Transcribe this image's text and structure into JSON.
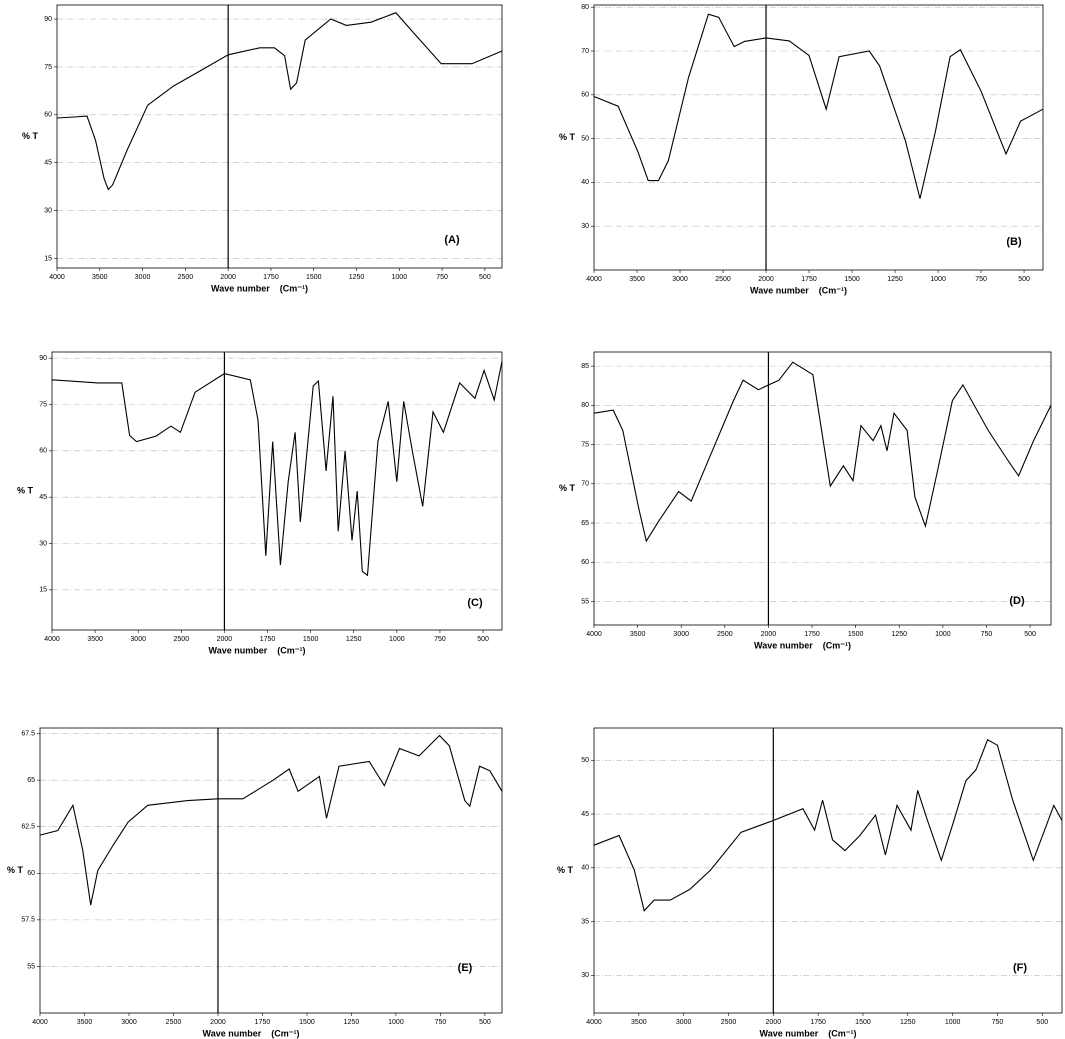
{
  "chart_data": [
    {
      "type": "line",
      "label": "(A)",
      "xlabel": "Wave number    (Cm⁻¹)",
      "ylabel": "% T",
      "color": "#000000",
      "grid": true,
      "xscale": "tick-uniform",
      "break_line": true,
      "xlim": [
        4000,
        400
      ],
      "ylim": [
        12,
        94.4
      ],
      "xticks": [
        4000,
        3500,
        3000,
        2500,
        2000,
        1750,
        1500,
        1250,
        1000,
        750,
        500
      ],
      "yticks": [
        15,
        30,
        45,
        60,
        75,
        90
      ],
      "x": [
        4000,
        3800,
        3650,
        3550,
        3450,
        3400,
        3350,
        3180,
        2940,
        2640,
        2350,
        2000,
        1815,
        1730,
        1670,
        1635,
        1600,
        1550,
        1400,
        1310,
        1165,
        1020,
        930,
        755,
        575,
        400
      ],
      "values": [
        59,
        59.3,
        59.6,
        52,
        40,
        36.6,
        38,
        49,
        63,
        69,
        73.4,
        78.8,
        81,
        81,
        78.5,
        68,
        70,
        83.4,
        90,
        88,
        89,
        92,
        86.5,
        76,
        76,
        80
      ]
    },
    {
      "type": "line",
      "label": "(B)",
      "xlabel": "Wave number    (Cm⁻¹)",
      "ylabel": "% T",
      "color": "#000000",
      "grid": true,
      "xscale": "tick-uniform",
      "break_line": true,
      "xlim": [
        4000,
        390
      ],
      "ylim": [
        20,
        80.5
      ],
      "xticks": [
        4000,
        3500,
        3000,
        2500,
        2000,
        1750,
        1500,
        1250,
        1000,
        750,
        500
      ],
      "yticks": [
        30,
        40,
        50,
        60,
        70,
        80
      ],
      "x": [
        4000,
        3720,
        3490,
        3370,
        3250,
        3135,
        2900,
        2670,
        2550,
        2370,
        2250,
        2000,
        1865,
        1750,
        1650,
        1575,
        1400,
        1340,
        1190,
        1105,
        1015,
        930,
        870,
        750,
        605,
        520,
        390
      ],
      "values": [
        59.6,
        57.4,
        47,
        40.4,
        40.4,
        45,
        64,
        78.4,
        77.7,
        71,
        72.2,
        73,
        72.3,
        69,
        56.7,
        68.7,
        70,
        66.6,
        49.5,
        36.3,
        51.7,
        68.7,
        70.3,
        60.8,
        46.5,
        54,
        56.7
      ]
    },
    {
      "type": "line",
      "label": "(C)",
      "xlabel": "Wave number    (Cm⁻¹)",
      "ylabel": "% T",
      "color": "#000000",
      "grid": true,
      "xscale": "tick-uniform",
      "break_line": true,
      "xlim": [
        4000,
        390
      ],
      "ylim": [
        2,
        92
      ],
      "xticks": [
        4000,
        3500,
        3000,
        2500,
        2000,
        1750,
        1500,
        1250,
        1000,
        750,
        500
      ],
      "yticks": [
        15,
        30,
        45,
        60,
        75,
        90
      ],
      "x": [
        4000,
        3470,
        3190,
        3100,
        3020,
        2790,
        2620,
        2510,
        2340,
        2000,
        1850,
        1805,
        1760,
        1720,
        1675,
        1630,
        1590,
        1560,
        1485,
        1455,
        1410,
        1370,
        1340,
        1300,
        1260,
        1230,
        1200,
        1170,
        1110,
        1050,
        1000,
        960,
        910,
        850,
        790,
        730,
        636,
        547,
        494,
        435,
        390
      ],
      "values": [
        83,
        82,
        82,
        65,
        63,
        64.8,
        68,
        66,
        79,
        85,
        83,
        70,
        26,
        63,
        23,
        50,
        66,
        37,
        81,
        82.6,
        53.5,
        77.7,
        34,
        60,
        31,
        47,
        21,
        19.7,
        63,
        76,
        50,
        76,
        60,
        42,
        72.6,
        66,
        82,
        77,
        86,
        76.5,
        89
      ]
    },
    {
      "type": "line",
      "label": "(D)",
      "xlabel": "Wave number    (Cm⁻¹)",
      "ylabel": "% T",
      "color": "#000000",
      "grid": true,
      "xscale": "tick-uniform",
      "break_line": true,
      "xlim": [
        4000,
        380
      ],
      "ylim": [
        52,
        86.8
      ],
      "xticks": [
        4000,
        3500,
        3000,
        2500,
        2000,
        1750,
        1500,
        1250,
        1000,
        750,
        500
      ],
      "yticks": [
        55,
        60,
        65,
        70,
        75,
        80,
        85
      ],
      "x": [
        4000,
        3780,
        3670,
        3490,
        3400,
        3260,
        3030,
        2885,
        2690,
        2400,
        2290,
        2115,
        1940,
        1860,
        1745,
        1645,
        1570,
        1515,
        1470,
        1400,
        1355,
        1320,
        1280,
        1205,
        1160,
        1100,
        1030,
        945,
        885,
        740,
        625,
        566,
        480,
        380
      ],
      "values": [
        79,
        79.4,
        76.8,
        67,
        62.7,
        65.2,
        69,
        67.8,
        73,
        80.6,
        83.2,
        82,
        83.2,
        85.5,
        83.9,
        69.7,
        72.3,
        70.4,
        77.4,
        75.5,
        77.4,
        74.2,
        79,
        76.8,
        68.3,
        64.6,
        71.7,
        80.6,
        82.6,
        76.8,
        72.9,
        71,
        75.5,
        80
      ]
    },
    {
      "type": "line",
      "label": "(E)",
      "xlabel": "Wave number    (Cm⁻¹)",
      "ylabel": "% T",
      "color": "#000000",
      "grid": true,
      "xscale": "tick-uniform",
      "break_line": true,
      "xlim": [
        4000,
        404
      ],
      "ylim": [
        52.5,
        67.8
      ],
      "xticks": [
        4000,
        3500,
        3000,
        2500,
        2000,
        1750,
        1500,
        1250,
        1000,
        750,
        500
      ],
      "yticks": [
        55,
        57.5,
        60,
        62.5,
        65,
        67.5
      ],
      "x": [
        4000,
        3800,
        3630,
        3520,
        3430,
        3350,
        3180,
        3010,
        2790,
        2340,
        2000,
        1860,
        1690,
        1600,
        1550,
        1430,
        1390,
        1320,
        1150,
        1065,
        980,
        870,
        755,
        700,
        613,
        585,
        530,
        472,
        404
      ],
      "values": [
        62.05,
        62.3,
        63.65,
        61.25,
        58.3,
        60.15,
        61.5,
        62.75,
        63.65,
        63.9,
        64,
        64,
        65,
        65.6,
        64.4,
        65.2,
        62.96,
        65.75,
        66,
        64.7,
        66.7,
        66.3,
        67.4,
        66.85,
        63.9,
        63.6,
        65.75,
        65.5,
        64.4
      ]
    },
    {
      "type": "line",
      "label": "(F)",
      "xlabel": "Wave number    (Cm⁻¹)",
      "ylabel": "% T",
      "color": "#000000",
      "grid": true,
      "xscale": "tick-uniform",
      "break_line": true,
      "xlim": [
        4000,
        390
      ],
      "ylim": [
        26.5,
        53
      ],
      "xticks": [
        4000,
        3500,
        3000,
        2500,
        2000,
        1750,
        1500,
        1250,
        1000,
        750,
        500
      ],
      "yticks": [
        30,
        35,
        40,
        45,
        50
      ],
      "x": [
        4000,
        3720,
        3550,
        3440,
        3330,
        3150,
        2930,
        2700,
        2360,
        2000,
        1835,
        1770,
        1725,
        1670,
        1600,
        1517,
        1430,
        1375,
        1310,
        1232,
        1195,
        1140,
        1063,
        1000,
        926,
        870,
        805,
        750,
        665,
        550,
        436,
        390
      ],
      "values": [
        42.1,
        43,
        39.8,
        36,
        37,
        37,
        38,
        39.8,
        43.3,
        44.4,
        45.5,
        43.5,
        46.3,
        42.6,
        41.6,
        43,
        44.9,
        41.2,
        45.8,
        43.5,
        47.2,
        44.4,
        40.7,
        44,
        48.1,
        49.1,
        51.9,
        51.4,
        46.3,
        40.7,
        45.8,
        44.4
      ]
    }
  ]
}
